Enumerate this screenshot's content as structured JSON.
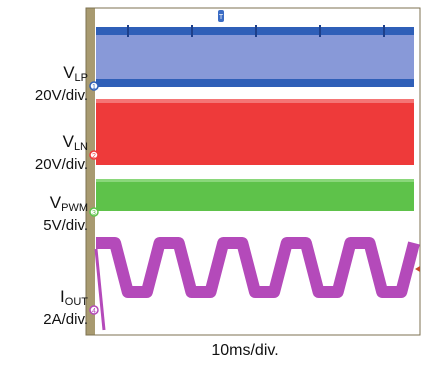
{
  "chart_data": {
    "type": "line",
    "xlabel": "10ms/div.",
    "x_divisions": 10,
    "y_divisions": 8,
    "trigger_marker": "T",
    "grid": false,
    "series": [
      {
        "name_main": "V",
        "name_sub": "LP",
        "scale": "20V/div.",
        "channel": "1",
        "color": "#2f5fb8",
        "fill": "#8899d8",
        "waveform": "switching-band"
      },
      {
        "name_main": "V",
        "name_sub": "LN",
        "scale": "20V/div.",
        "channel": "2",
        "color": "#ee3a3a",
        "waveform": "switching-band"
      },
      {
        "name_main": "V",
        "name_sub": "PWM",
        "scale": "5V/div.",
        "channel": "3",
        "color": "#5ec24a",
        "waveform": "switching-band"
      },
      {
        "name_main": "I",
        "name_sub": "OUT",
        "scale": "2A/div.",
        "channel": "4",
        "color": "#b44aba",
        "waveform": "trapezoid",
        "periods": 5
      }
    ]
  }
}
